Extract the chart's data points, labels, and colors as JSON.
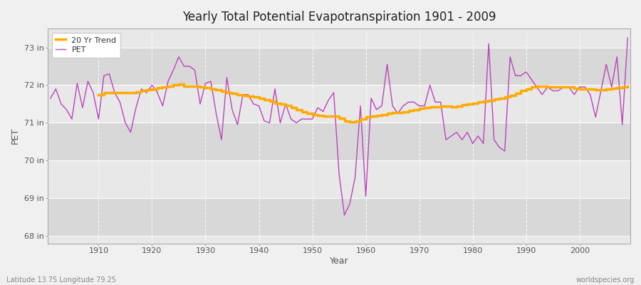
{
  "title": "Yearly Total Potential Evapotranspiration 1901 - 2009",
  "ylabel": "PET",
  "xlabel": "Year",
  "footnote_left": "Latitude 13.75 Longitude 79.25",
  "footnote_right": "worldspecies.org",
  "pet_color": "#bb44bb",
  "trend_color": "#ffaa00",
  "bg_color": "#f0f0f0",
  "plot_bg_color": "#f0f0f0",
  "band_color": "#dcdcdc",
  "legend_pet": "PET",
  "legend_trend": "20 Yr Trend",
  "ylim_min": 67.8,
  "ylim_max": 73.5,
  "yticks": [
    68,
    69,
    70,
    71,
    72,
    73
  ],
  "ytick_labels": [
    "68 in",
    "69 in",
    "70 in",
    "71 in",
    "72 in",
    "73 in"
  ],
  "xticks": [
    1910,
    1920,
    1930,
    1940,
    1950,
    1960,
    1970,
    1980,
    1990,
    2000
  ],
  "years": [
    1901,
    1902,
    1903,
    1904,
    1905,
    1906,
    1907,
    1908,
    1909,
    1910,
    1911,
    1912,
    1913,
    1914,
    1915,
    1916,
    1917,
    1918,
    1919,
    1920,
    1921,
    1922,
    1923,
    1924,
    1925,
    1926,
    1927,
    1928,
    1929,
    1930,
    1931,
    1932,
    1933,
    1934,
    1935,
    1936,
    1937,
    1938,
    1939,
    1940,
    1941,
    1942,
    1943,
    1944,
    1945,
    1946,
    1947,
    1948,
    1949,
    1950,
    1951,
    1952,
    1953,
    1954,
    1955,
    1956,
    1957,
    1958,
    1959,
    1960,
    1961,
    1962,
    1963,
    1964,
    1965,
    1966,
    1967,
    1968,
    1969,
    1970,
    1971,
    1972,
    1973,
    1974,
    1975,
    1976,
    1977,
    1978,
    1979,
    1980,
    1981,
    1982,
    1983,
    1984,
    1985,
    1986,
    1987,
    1988,
    1989,
    1990,
    1991,
    1992,
    1993,
    1994,
    1995,
    1996,
    1997,
    1998,
    1999,
    2000,
    2001,
    2002,
    2003,
    2004,
    2005,
    2006,
    2007,
    2008,
    2009
  ],
  "pet_values": [
    71.65,
    71.9,
    71.5,
    71.35,
    71.1,
    72.05,
    71.4,
    72.1,
    71.8,
    71.1,
    72.25,
    72.3,
    71.8,
    71.55,
    71.0,
    70.75,
    71.4,
    71.9,
    71.8,
    72.0,
    71.8,
    71.45,
    72.1,
    72.4,
    72.75,
    72.5,
    72.5,
    72.4,
    71.5,
    72.05,
    72.1,
    71.25,
    70.55,
    72.2,
    71.35,
    70.95,
    71.75,
    71.75,
    71.5,
    71.45,
    71.05,
    71.0,
    71.9,
    71.0,
    71.5,
    71.1,
    71.0,
    71.1,
    71.1,
    71.1,
    71.4,
    71.3,
    71.6,
    71.8,
    69.65,
    68.55,
    68.85,
    69.55,
    71.45,
    69.05,
    71.65,
    71.35,
    71.45,
    72.55,
    71.45,
    71.25,
    71.45,
    71.55,
    71.55,
    71.45,
    71.45,
    72.0,
    71.55,
    71.55,
    70.55,
    70.65,
    70.75,
    70.55,
    70.75,
    70.45,
    70.65,
    70.45,
    73.1,
    70.55,
    70.35,
    70.25,
    72.75,
    72.25,
    72.25,
    72.35,
    72.15,
    71.95,
    71.75,
    71.95,
    71.85,
    71.85,
    71.95,
    71.95,
    71.75,
    71.95,
    71.95,
    71.75,
    71.15,
    71.85,
    72.55,
    71.95,
    72.75,
    70.95,
    73.25
  ],
  "trend_values": [
    null,
    null,
    null,
    null,
    null,
    null,
    null,
    null,
    null,
    71.75,
    71.8,
    71.8,
    71.8,
    71.8,
    71.8,
    71.8,
    71.82,
    71.85,
    71.87,
    71.9,
    71.93,
    71.95,
    71.97,
    72.0,
    72.02,
    71.98,
    71.98,
    71.97,
    71.95,
    71.93,
    71.9,
    71.88,
    71.83,
    71.8,
    71.78,
    71.75,
    71.72,
    71.7,
    71.68,
    71.65,
    71.62,
    71.57,
    71.52,
    71.5,
    71.47,
    71.4,
    71.35,
    71.3,
    71.25,
    71.22,
    71.2,
    71.18,
    71.18,
    71.18,
    71.12,
    71.05,
    71.02,
    71.05,
    71.1,
    71.15,
    71.18,
    71.2,
    71.22,
    71.25,
    71.27,
    71.28,
    71.3,
    71.32,
    71.35,
    71.38,
    71.4,
    71.42,
    71.43,
    71.45,
    71.45,
    71.43,
    71.45,
    71.48,
    71.5,
    71.52,
    71.55,
    71.58,
    71.6,
    71.63,
    71.65,
    71.68,
    71.72,
    71.78,
    71.85,
    71.9,
    71.95,
    71.97,
    71.97,
    71.95,
    71.95,
    71.95,
    71.95,
    71.95,
    71.92,
    71.9,
    71.9,
    71.9,
    71.88,
    71.88,
    71.9,
    71.92,
    71.93,
    71.95,
    71.98
  ]
}
